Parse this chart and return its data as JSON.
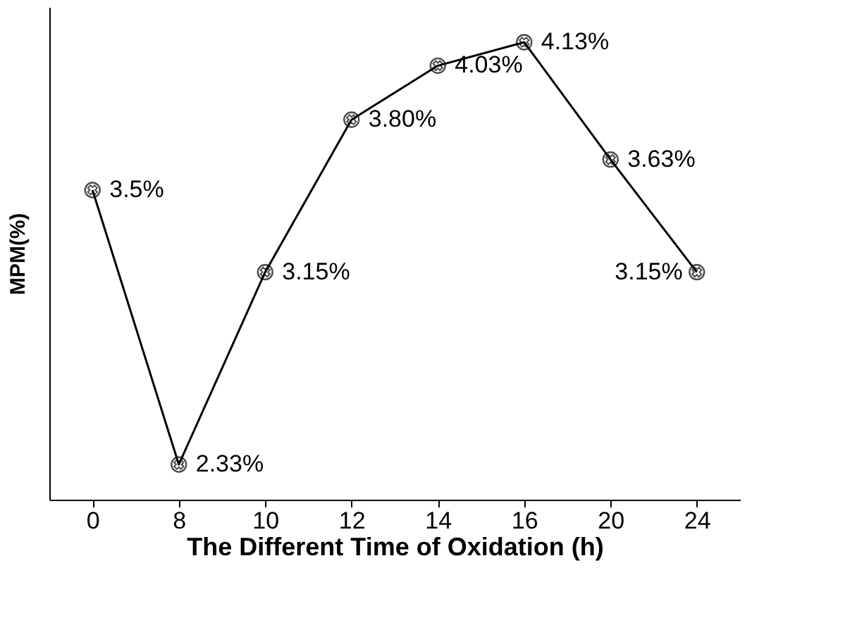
{
  "chart_data": {
    "type": "line",
    "xlabel": "The Different Time of Oxidation (h)",
    "ylabel": "MPM(%)",
    "categories": [
      "0",
      "8",
      "10",
      "12",
      "14",
      "16",
      "20",
      "24"
    ],
    "series": [
      {
        "color": "#000000",
        "values": [
          3.5,
          2.33,
          3.15,
          3.8,
          4.03,
          4.13,
          3.63,
          3.15
        ],
        "value_labels": [
          "3.5%",
          "2.33%",
          "3.15%",
          "3.80%",
          "4.03%",
          "4.13%",
          "3.63%",
          "3.15%"
        ]
      }
    ],
    "marker": "circle",
    "line_style": "solid",
    "tick_labels": "x",
    "grid": false
  }
}
